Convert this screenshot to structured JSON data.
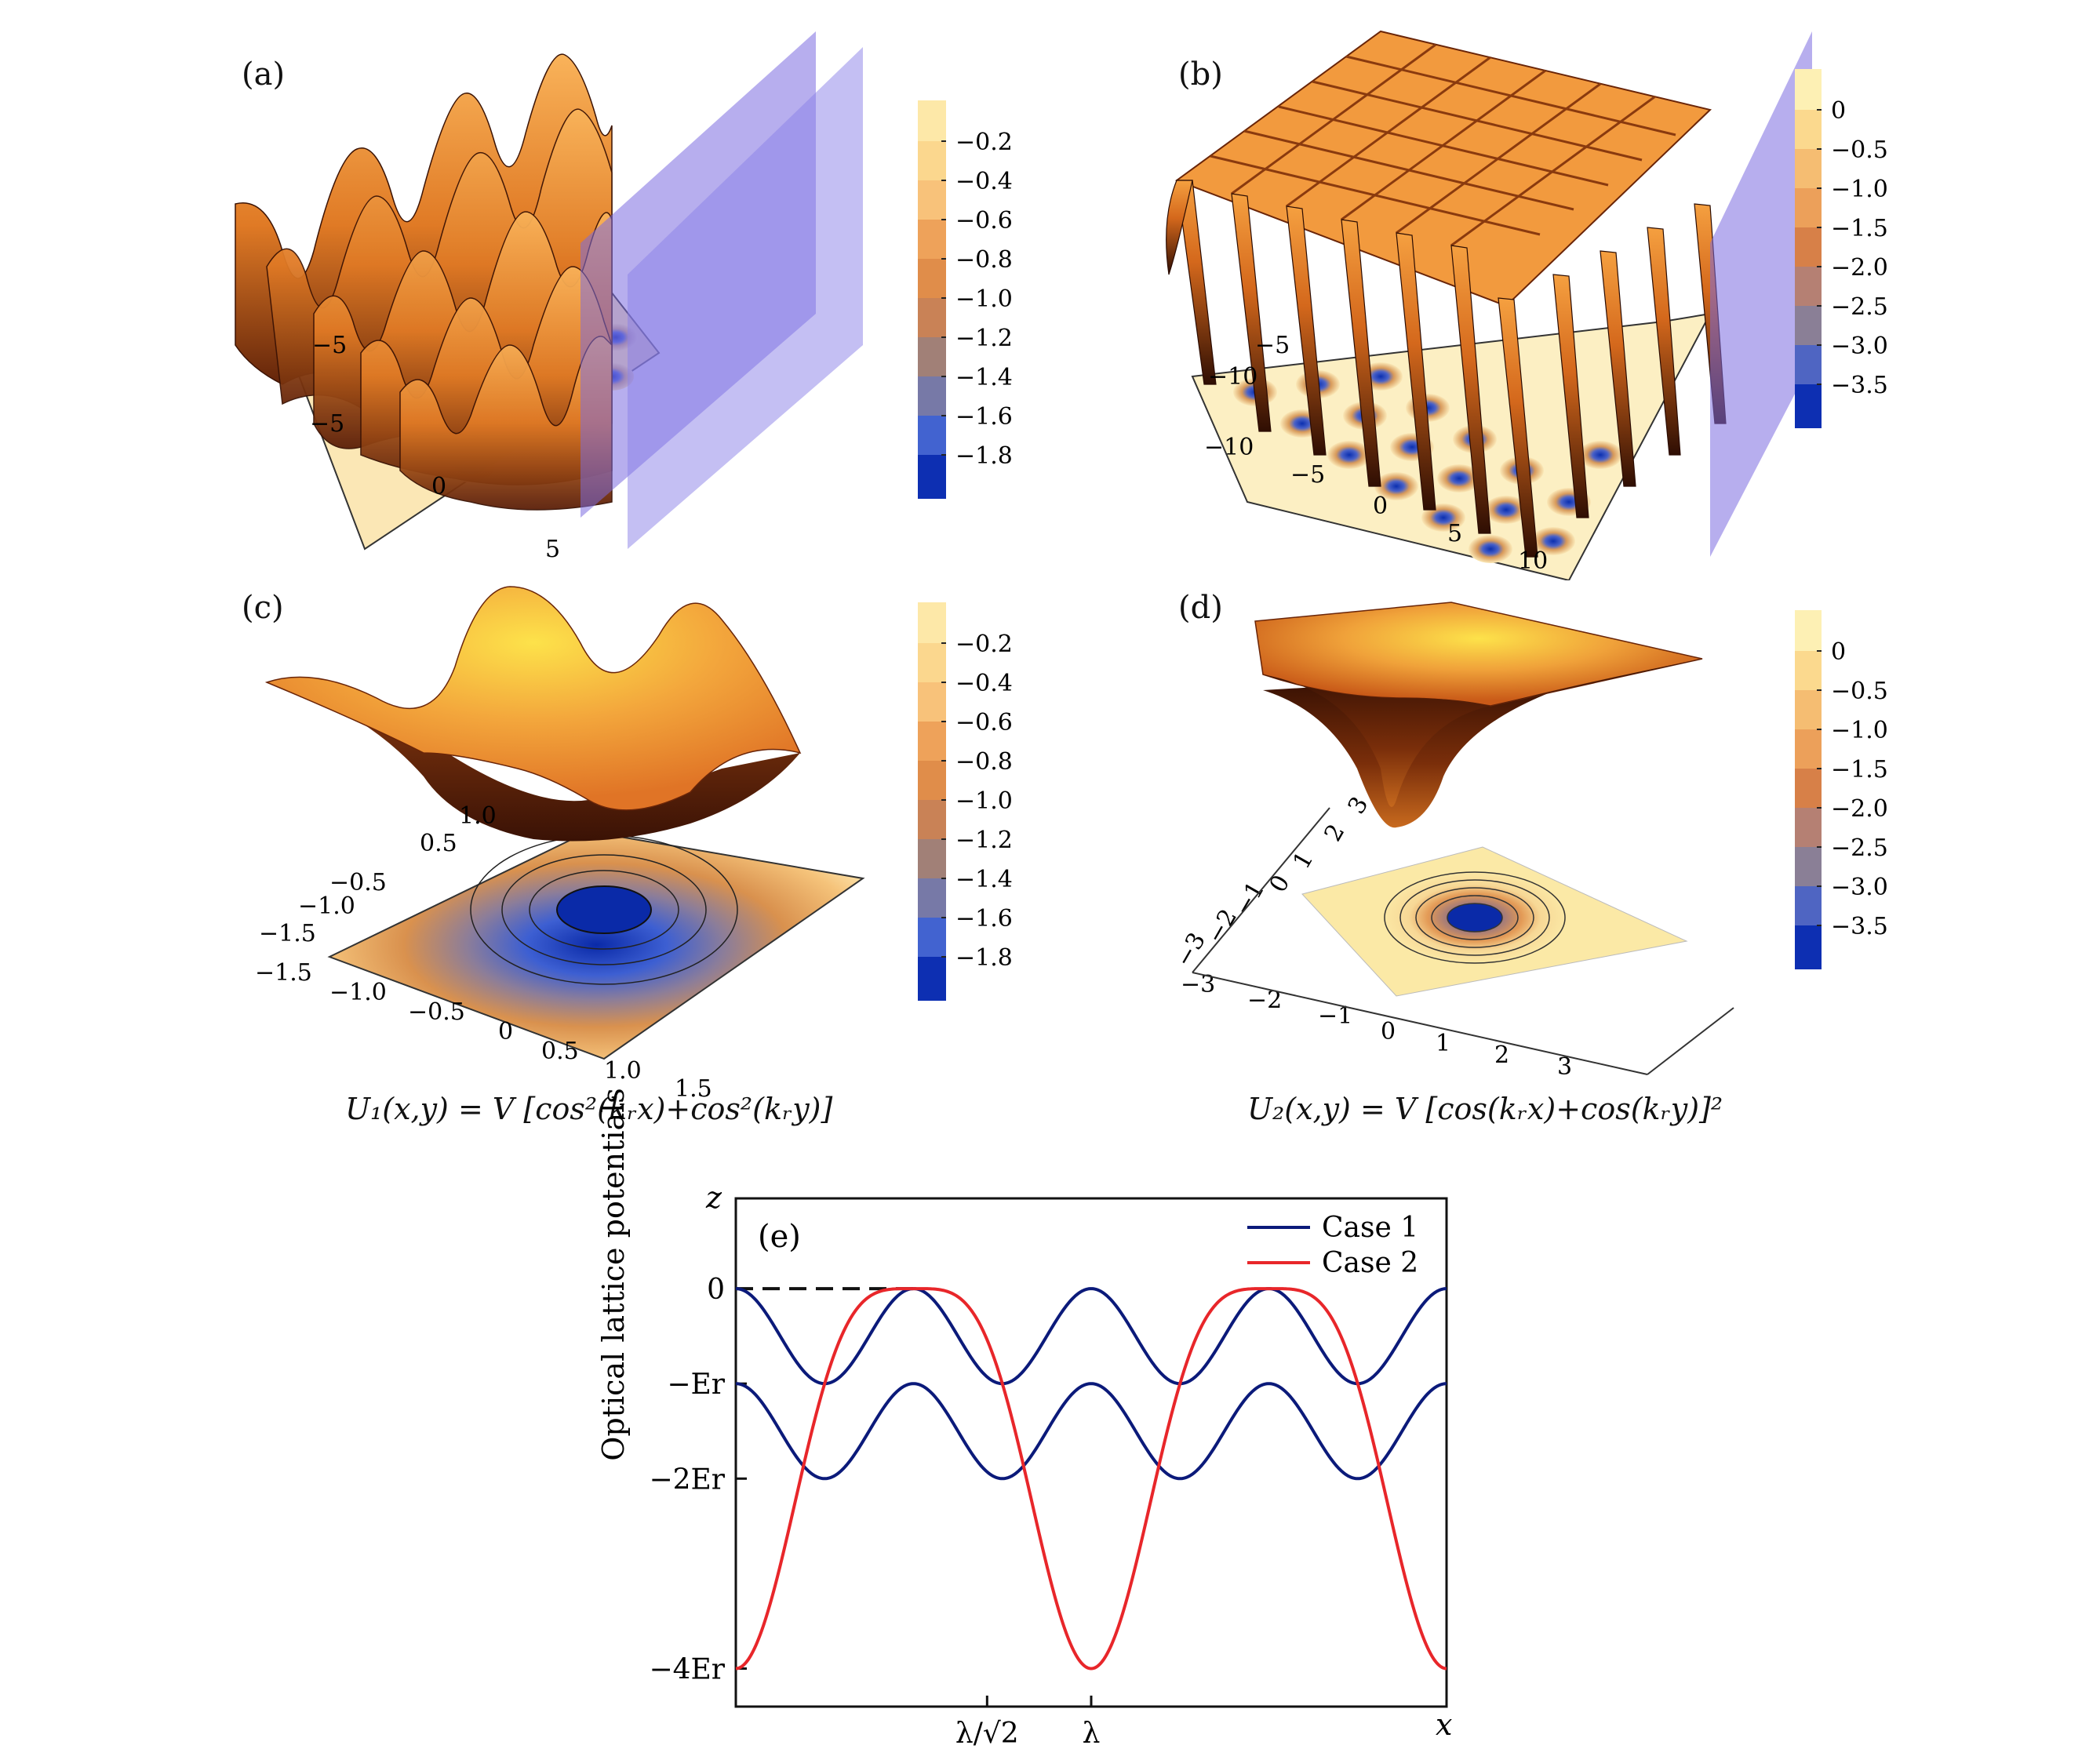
{
  "panels": {
    "a": {
      "label": "(a)",
      "axis_ticks_left": [
        "−5"
      ],
      "axis_ticks_front": [
        "−5",
        "0",
        "5"
      ],
      "colorbar": [
        "−0.2",
        "−0.4",
        "−0.6",
        "−0.8",
        "−1.0",
        "−1.2",
        "−1.4",
        "−1.6",
        "−1.8"
      ]
    },
    "b": {
      "label": "(b)",
      "axis_ticks_left": [
        "−5",
        "−10"
      ],
      "axis_ticks_front": [
        "−10",
        "−5",
        "0",
        "5",
        "10"
      ],
      "colorbar": [
        "0",
        "−0.5",
        "−1.0",
        "−1.5",
        "−2.0",
        "−2.5",
        "−3.0",
        "−3.5"
      ]
    },
    "c": {
      "label": "(c)",
      "axis_ticks_left": [
        "1.0",
        "0.5",
        "−0.5",
        "−1.0",
        "−1.5"
      ],
      "axis_ticks_front": [
        "−1.5",
        "−1.0",
        "−0.5",
        "0",
        "0.5",
        "1.0",
        "1.5"
      ],
      "colorbar": [
        "−0.2",
        "−0.4",
        "−0.6",
        "−0.8",
        "−1.0",
        "−1.2",
        "−1.4",
        "−1.6",
        "−1.8"
      ],
      "formula": "U₁(x,y) = V [cos²(kᵣx)+cos²(kᵣy)]"
    },
    "d": {
      "label": "(d)",
      "axis_ticks_left": [
        "3",
        "2",
        "1",
        "0",
        "−1",
        "−2",
        "−3"
      ],
      "axis_ticks_front": [
        "−3",
        "−2",
        "−1",
        "0",
        "1",
        "2",
        "3"
      ],
      "colorbar": [
        "0",
        "−0.5",
        "−1.0",
        "−1.5",
        "−2.0",
        "−2.5",
        "−3.0",
        "−3.5"
      ],
      "formula": "U₂(x,y) = V [cos(kᵣx)+cos(kᵣy)]²"
    }
  },
  "colors": {
    "surface_light": "#fde47a",
    "surface_mid": "#e8862f",
    "surface_dark": "#4a1806",
    "plane": "#8a7fe8",
    "well": "#0a2aa8",
    "case1": "#0b1a7a",
    "case2": "#e8262a"
  },
  "chart_data": {
    "type": "line",
    "label": "(e)",
    "ylabel": "Optical lattice potentials",
    "y_axis_name": "z",
    "x_axis_name": "x",
    "x_ticks": [
      "λ/√2",
      "λ"
    ],
    "y_ticks": [
      "0",
      "−Er",
      "−2Er",
      "−4Er"
    ],
    "xlim": [
      0,
      2
    ],
    "ylim": [
      -4.4,
      0.95
    ],
    "reference_line": {
      "y": 0,
      "x_from": 0,
      "x_to": 0.5,
      "style": "dashed"
    },
    "series": [
      {
        "name": "Case 1",
        "description": "upper curve: z = -1 + 0.5(1+cos(4πx)); lower curve: z = -2 + 0.5(1+cos(4πx)) (x in units of λ)",
        "ymax": 0,
        "ymin": -2
      },
      {
        "name": "Case 2",
        "description": "z = -4 cos⁴(π x) (flattened top)",
        "ymax": 0,
        "ymin": -4
      }
    ]
  }
}
